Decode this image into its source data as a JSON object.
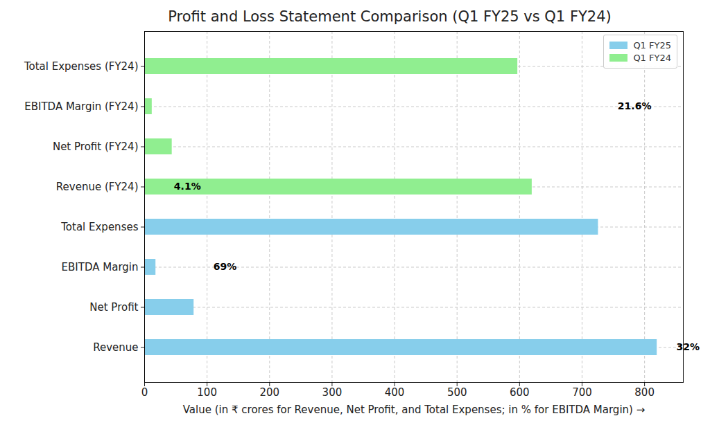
{
  "chart_data": {
    "type": "bar",
    "orientation": "horizontal",
    "title": "Profit and Loss Statement Comparison (Q1 FY25 vs Q1 FY24)",
    "x_label": "Value (in ₹ crores for Revenue, Net Profit, and Total Expenses; in % for EBITDA Margin)",
    "categories": [
      "Total Expenses (FY24)",
      "EBITDA Margin (FY24)",
      "Net Profit (FY24)",
      "Revenue (FY24)",
      "Total Expenses",
      "EBITDA Margin",
      "Net Profit",
      "Revenue"
    ],
    "series": [
      {
        "name": "Q1 FY25",
        "color": "#87ceeb",
        "values": [
          null,
          null,
          null,
          null,
          726,
          18,
          79,
          820
        ]
      },
      {
        "name": "Q1 FY24",
        "color": "#90ee90",
        "values": [
          597,
          12,
          44,
          620,
          null,
          null,
          null,
          null
        ]
      }
    ],
    "annotations": [
      {
        "text": "32%",
        "category": "Revenue",
        "x": 851
      },
      {
        "text": "69%",
        "category": "EBITDA Margin",
        "x": 110
      },
      {
        "text": "4.1%",
        "category": "Revenue (FY24)",
        "x": 47
      },
      {
        "text": "21.6%",
        "category": "EBITDA Margin (FY24)",
        "x": 757
      }
    ],
    "xlim": [
      0,
      862
    ],
    "xticks": [
      0,
      100,
      200,
      300,
      400,
      500,
      600,
      700,
      800
    ],
    "grid": true,
    "legend": "upper right"
  }
}
